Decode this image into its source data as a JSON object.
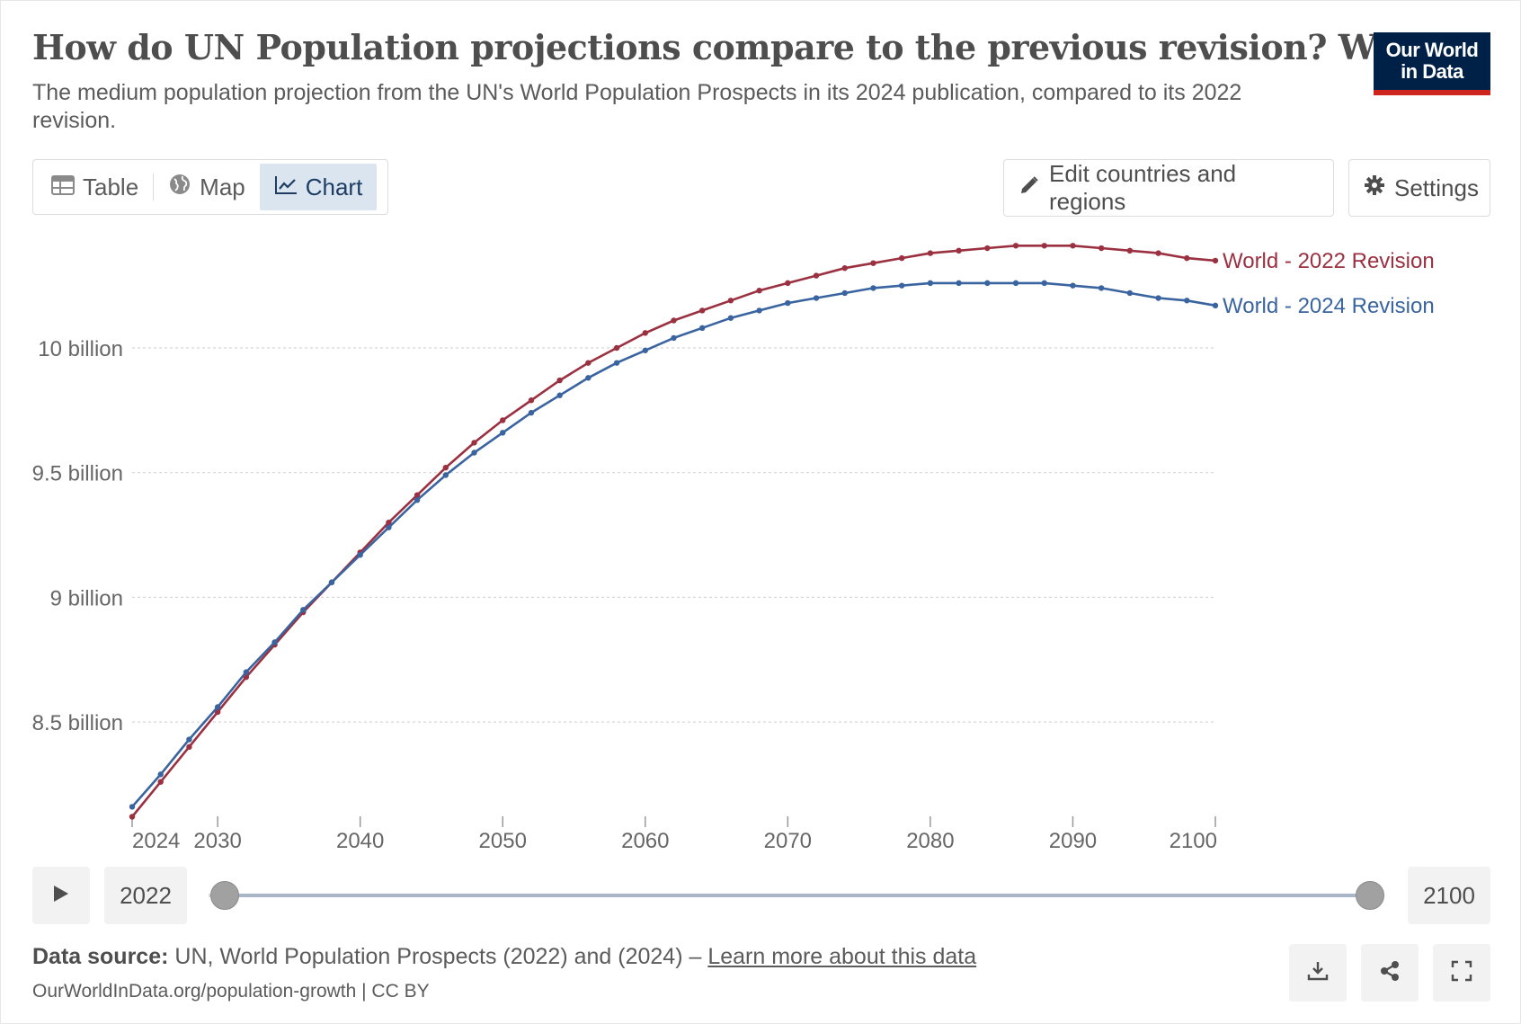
{
  "header": {
    "title": "How do UN Population projections compare to the previous revision? World",
    "subtitle": "The medium population projection from the UN's World Population Prospects in its 2024 publication, compared to its 2022 revision.",
    "logo_line1": "Our World",
    "logo_line2": "in Data"
  },
  "toolbar": {
    "tabs": [
      {
        "label": "Table",
        "icon": "table-icon"
      },
      {
        "label": "Map",
        "icon": "globe-icon"
      },
      {
        "label": "Chart",
        "icon": "line-chart-icon",
        "active": true
      }
    ],
    "edit_label": "Edit countries and regions",
    "settings_label": "Settings"
  },
  "colors": {
    "series_2022": "#9a3040",
    "series_2024": "#3a64a0",
    "accent": "#1d3d63"
  },
  "chart_data": {
    "type": "line",
    "x_ticks": [
      2024,
      2030,
      2040,
      2050,
      2060,
      2070,
      2080,
      2090,
      2100
    ],
    "y_ticks": [
      {
        "value": 8.5,
        "label": "8.5 billion"
      },
      {
        "value": 9.0,
        "label": "9 billion"
      },
      {
        "value": 9.5,
        "label": "9.5 billion"
      },
      {
        "value": 10.0,
        "label": "10 billion"
      }
    ],
    "xlim": [
      2024,
      2100
    ],
    "ylim": [
      8.1,
      10.5
    ],
    "grid": "horizontal dotted",
    "legend": "right, inline labels",
    "series": [
      {
        "name": "World - 2022 Revision",
        "x": [
          2024,
          2026,
          2028,
          2030,
          2032,
          2034,
          2036,
          2038,
          2040,
          2042,
          2044,
          2046,
          2048,
          2050,
          2052,
          2054,
          2056,
          2058,
          2060,
          2062,
          2064,
          2066,
          2068,
          2070,
          2072,
          2074,
          2076,
          2078,
          2080,
          2082,
          2084,
          2086,
          2088,
          2090,
          2092,
          2094,
          2096,
          2098,
          2100
        ],
        "values": [
          8.12,
          8.26,
          8.4,
          8.54,
          8.68,
          8.81,
          8.94,
          9.06,
          9.18,
          9.3,
          9.41,
          9.52,
          9.62,
          9.71,
          9.79,
          9.87,
          9.94,
          10.0,
          10.06,
          10.11,
          10.15,
          10.19,
          10.23,
          10.26,
          10.29,
          10.32,
          10.34,
          10.36,
          10.38,
          10.39,
          10.4,
          10.41,
          10.41,
          10.41,
          10.4,
          10.39,
          10.38,
          10.36,
          10.35
        ]
      },
      {
        "name": "World - 2024 Revision",
        "x": [
          2024,
          2026,
          2028,
          2030,
          2032,
          2034,
          2036,
          2038,
          2040,
          2042,
          2044,
          2046,
          2048,
          2050,
          2052,
          2054,
          2056,
          2058,
          2060,
          2062,
          2064,
          2066,
          2068,
          2070,
          2072,
          2074,
          2076,
          2078,
          2080,
          2082,
          2084,
          2086,
          2088,
          2090,
          2092,
          2094,
          2096,
          2098,
          2100
        ],
        "values": [
          8.16,
          8.29,
          8.43,
          8.56,
          8.7,
          8.82,
          8.95,
          9.06,
          9.17,
          9.28,
          9.39,
          9.49,
          9.58,
          9.66,
          9.74,
          9.81,
          9.88,
          9.94,
          9.99,
          10.04,
          10.08,
          10.12,
          10.15,
          10.18,
          10.2,
          10.22,
          10.24,
          10.25,
          10.26,
          10.26,
          10.26,
          10.26,
          10.26,
          10.25,
          10.24,
          10.22,
          10.2,
          10.19,
          10.17
        ]
      }
    ]
  },
  "timeline": {
    "start_label": "2022",
    "end_label": "2100",
    "start_fraction": 0.0,
    "end_fraction": 1.0
  },
  "footer": {
    "source_label": "Data source:",
    "source_text": "UN, World Population Prospects (2022) and (2024) –",
    "learn_more": "Learn more about this data",
    "url_text": "OurWorldInData.org/population-growth | CC BY"
  }
}
